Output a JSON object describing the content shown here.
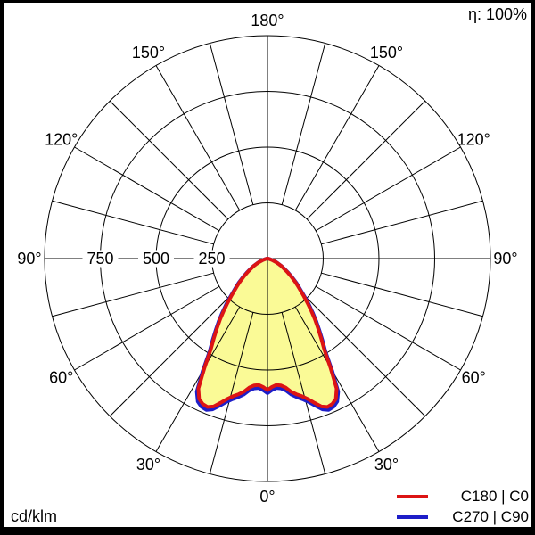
{
  "chart_data": {
    "type": "polar",
    "subtype": "luminous-intensity-distribution",
    "title": "",
    "efficiency_label": "η: 100%",
    "unit_label": "cd/klm",
    "radial_axis": {
      "max": 1000,
      "step": 250,
      "tick_values": [
        750,
        500,
        250
      ],
      "tick_labels": [
        "750",
        "500",
        "250"
      ],
      "outer_ring_value": 1000,
      "tick_label_side": "left"
    },
    "angle_axis": {
      "labels": [
        "0°",
        "30°",
        "60°",
        "90°",
        "120°",
        "150°",
        "180°"
      ],
      "label_step_deg": 30,
      "grid_step_deg": 15,
      "orientation": "0 deg at bottom (nadir), 180 deg at top, angles mirrored left and right"
    },
    "colors": {
      "background": "#ffffff",
      "grid": "#000000",
      "fill": "#fafa96",
      "frame": "#000000",
      "text": "#000000"
    },
    "series": [
      {
        "name": "C180 | C0",
        "color": "#dc1414",
        "stroke_width": 4,
        "symmetric": true,
        "gamma_deg": [
          0,
          2,
          4,
          6,
          8,
          10,
          12,
          14,
          16,
          18,
          20,
          22,
          24,
          26,
          28,
          30,
          32,
          34,
          36,
          38,
          40,
          42,
          44,
          46,
          48,
          50,
          53,
          56,
          59,
          62,
          65,
          68,
          71,
          74,
          78,
          82,
          86,
          90
        ],
        "values_cd_per_klm": [
          590,
          576,
          568,
          572,
          584,
          606,
          622,
          636,
          655,
          680,
          706,
          718,
          714,
          700,
          660,
          565,
          480,
          430,
          385,
          345,
          305,
          268,
          235,
          205,
          182,
          162,
          132,
          106,
          84,
          70,
          52,
          38,
          26,
          17,
          9,
          4,
          2,
          0
        ]
      },
      {
        "name": "C270 | C90",
        "color": "#1e1ec8",
        "stroke_width": 4,
        "symmetric": true,
        "gamma_deg": [
          0,
          2,
          4,
          6,
          8,
          10,
          12,
          14,
          16,
          18,
          20,
          22,
          24,
          26,
          28,
          30,
          32,
          34,
          36,
          38,
          40,
          42,
          44,
          46,
          48,
          50,
          53,
          56,
          59,
          62,
          65,
          68,
          71,
          74,
          78,
          82,
          86,
          90
        ],
        "values_cd_per_klm": [
          604,
          590,
          582,
          586,
          598,
          620,
          636,
          650,
          669,
          694,
          720,
          732,
          728,
          714,
          676,
          580,
          490,
          440,
          395,
          355,
          315,
          278,
          245,
          213,
          189,
          169,
          138,
          112,
          88,
          72,
          54,
          40,
          27,
          18,
          10,
          5,
          2,
          0
        ]
      }
    ]
  }
}
